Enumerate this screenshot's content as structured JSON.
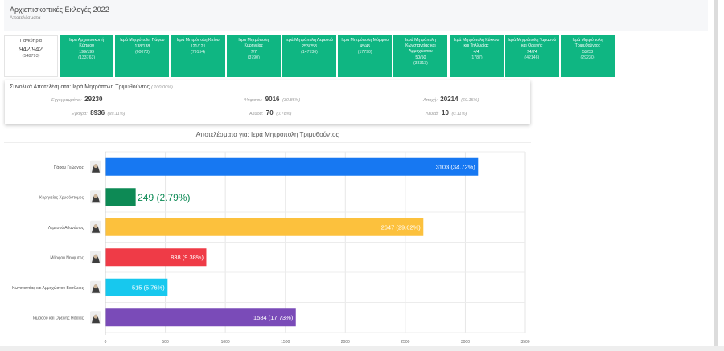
{
  "header": {
    "title": "Αρχιεπισκοπικές Εκλογές 2022",
    "subtitle": "Αποτελέσματα"
  },
  "tabs": [
    {
      "name": "Παγκύπρια",
      "counts": "942/942",
      "votes": "(548793)",
      "active": true
    },
    {
      "name": "Ιερά Αρχιεπισκοπή Κύπρου",
      "counts": "199/199",
      "votes": "(133763)"
    },
    {
      "name": "Ιερά Μητρόπολη Πάφου",
      "counts": "138/138",
      "votes": "(60073)"
    },
    {
      "name": "Ιερά Μητρόπολη Κιτίου",
      "counts": "121/121",
      "votes": "(79154)"
    },
    {
      "name": "Ιερά Μητρόπολη Κυρηνείας",
      "counts": "7/7",
      "votes": "(3790)"
    },
    {
      "name": "Ιερά Μητρόπολη Λεμεσού",
      "counts": "253/253",
      "votes": "(147736)"
    },
    {
      "name": "Ιερά Μητρόπολη Μόρφου",
      "counts": "45/45",
      "votes": "(17790)"
    },
    {
      "name": "Ιερά Μητρόπολη Κωνσταντίας και Αμμοχώστου",
      "counts": "50/50",
      "votes": "(33313)"
    },
    {
      "name": "Ιερά Μητρόπολη Κύκκου και Τηλλυρίας",
      "counts": "4/4",
      "votes": "(1787)"
    },
    {
      "name": "Ιερά Μητρόπολη Ταμασού και Ορεινής",
      "counts": "74/74",
      "votes": "(42146)"
    },
    {
      "name": "Ιερά Μητρόπολη Τριμυθούντος",
      "counts": "53/53",
      "votes": "(29230)"
    }
  ],
  "summary": {
    "title": "Συνολικά Αποτελέσματα: Ιερά Μητρόπολη Τριμυθούντος",
    "title_pct": "( 100.00%)",
    "registered_label": "Εγγεγραμμένοι:",
    "registered_value": "29230",
    "voted_label": "Ψήφισαν:",
    "voted_value": "9016",
    "voted_pct": "(30.85%)",
    "abstain_label": "Αποχή:",
    "abstain_value": "20214",
    "abstain_pct": "(69.15%)",
    "valid_label": "Έγκυρα:",
    "valid_value": "8936",
    "valid_pct": "(99.11%)",
    "invalid_label": "Άκυρα:",
    "invalid_value": "70",
    "invalid_pct": "(0.78%)",
    "blank_label": "Λευκά:",
    "blank_value": "10",
    "blank_pct": "(0.11%)"
  },
  "chart_title": "Αποτελέσματα για: Ιερά Μητρόπολη Τριμυθούντος",
  "chart_data": {
    "type": "bar",
    "orientation": "horizontal",
    "categories": [
      "Πάφου Γεώργιος",
      "Κυρηνείας Χρυσόστομος",
      "Λεμεσού Αθανάσιος",
      "Μόρφου Νεόφυτος",
      "Κωνσταντίας και Αμμοχώστου Βασίλειος",
      "Ταμασού και Ορεινής Ησαΐας"
    ],
    "values": [
      3103,
      249,
      2647,
      838,
      515,
      1584
    ],
    "data_labels": [
      "3103 (34.72%)",
      "249 (2.79%)",
      "2647 (29.62%)",
      "838 (9.38%)",
      "515 (5.76%)",
      "1584 (17.73%)"
    ],
    "colors": [
      "#1778f2",
      "#0d8a55",
      "#fcc13d",
      "#ef3b47",
      "#17c8ee",
      "#7a4bb8"
    ],
    "xlim": [
      0,
      3500
    ],
    "xticks": [
      0,
      500,
      1000,
      1500,
      2000,
      2500,
      3000,
      3500
    ],
    "grid": true
  }
}
